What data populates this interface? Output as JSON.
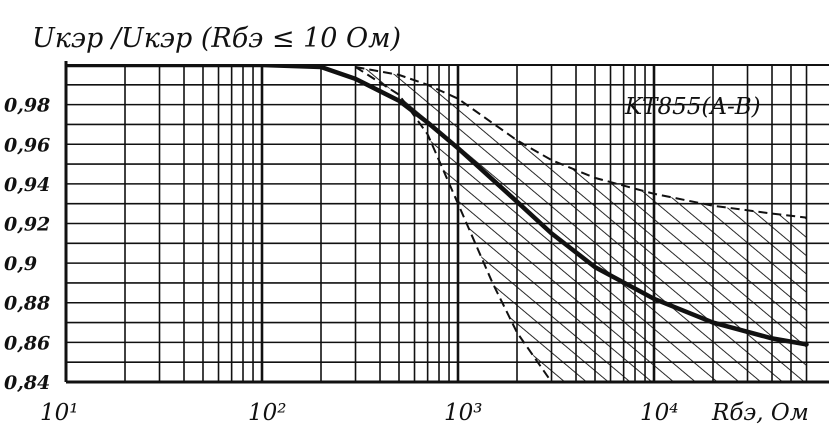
{
  "chart_data": {
    "type": "line",
    "title": "Uкэр /Uкэр (Rбэ ≤ 10 Ом)",
    "xlabel": "Rбэ, Ом",
    "ylabel": "",
    "x_scale": "log",
    "xlim": [
      10,
      60000
    ],
    "ylim": [
      0.84,
      1.0
    ],
    "x_tick_labels": [
      "10¹",
      "10²",
      "10³",
      "10⁴"
    ],
    "x_tick_values": [
      10,
      100,
      1000,
      10000
    ],
    "y_ticks": [
      0.84,
      0.86,
      0.88,
      0.9,
      0.92,
      0.94,
      0.96,
      0.98
    ],
    "y_tick_labels": [
      "0,84",
      "0,86",
      "0,88",
      "0,9",
      "0,92",
      "0,94",
      "0,96",
      "0,98"
    ],
    "grid": true,
    "annotation": "KT855(A-B)",
    "series": [
      {
        "role": "typical",
        "x": [
          10,
          100,
          200,
          300,
          500,
          700,
          1000,
          2000,
          3000,
          5000,
          10000,
          20000,
          40000,
          60000
        ],
        "y": [
          1.0,
          1.0,
          0.999,
          0.993,
          0.982,
          0.971,
          0.958,
          0.931,
          0.915,
          0.898,
          0.882,
          0.87,
          0.862,
          0.859
        ]
      }
    ],
    "spread_band": {
      "upper": {
        "x": [
          300,
          500,
          700,
          1000,
          2000,
          3000,
          5000,
          10000,
          20000,
          40000,
          60000
        ],
        "y": [
          0.999,
          0.995,
          0.99,
          0.983,
          0.962,
          0.952,
          0.943,
          0.935,
          0.929,
          0.925,
          0.923
        ]
      },
      "lower": {
        "x": [
          300,
          500,
          700,
          1000,
          1500,
          2000,
          3000,
          5000,
          10000,
          20000,
          40000,
          60000
        ],
        "y": [
          0.999,
          0.985,
          0.965,
          0.93,
          0.89,
          0.865,
          0.84,
          0.84,
          0.84,
          0.84,
          0.84,
          0.84
        ]
      }
    },
    "colors": {
      "ink": "#111111",
      "background": "#ffffff"
    }
  }
}
